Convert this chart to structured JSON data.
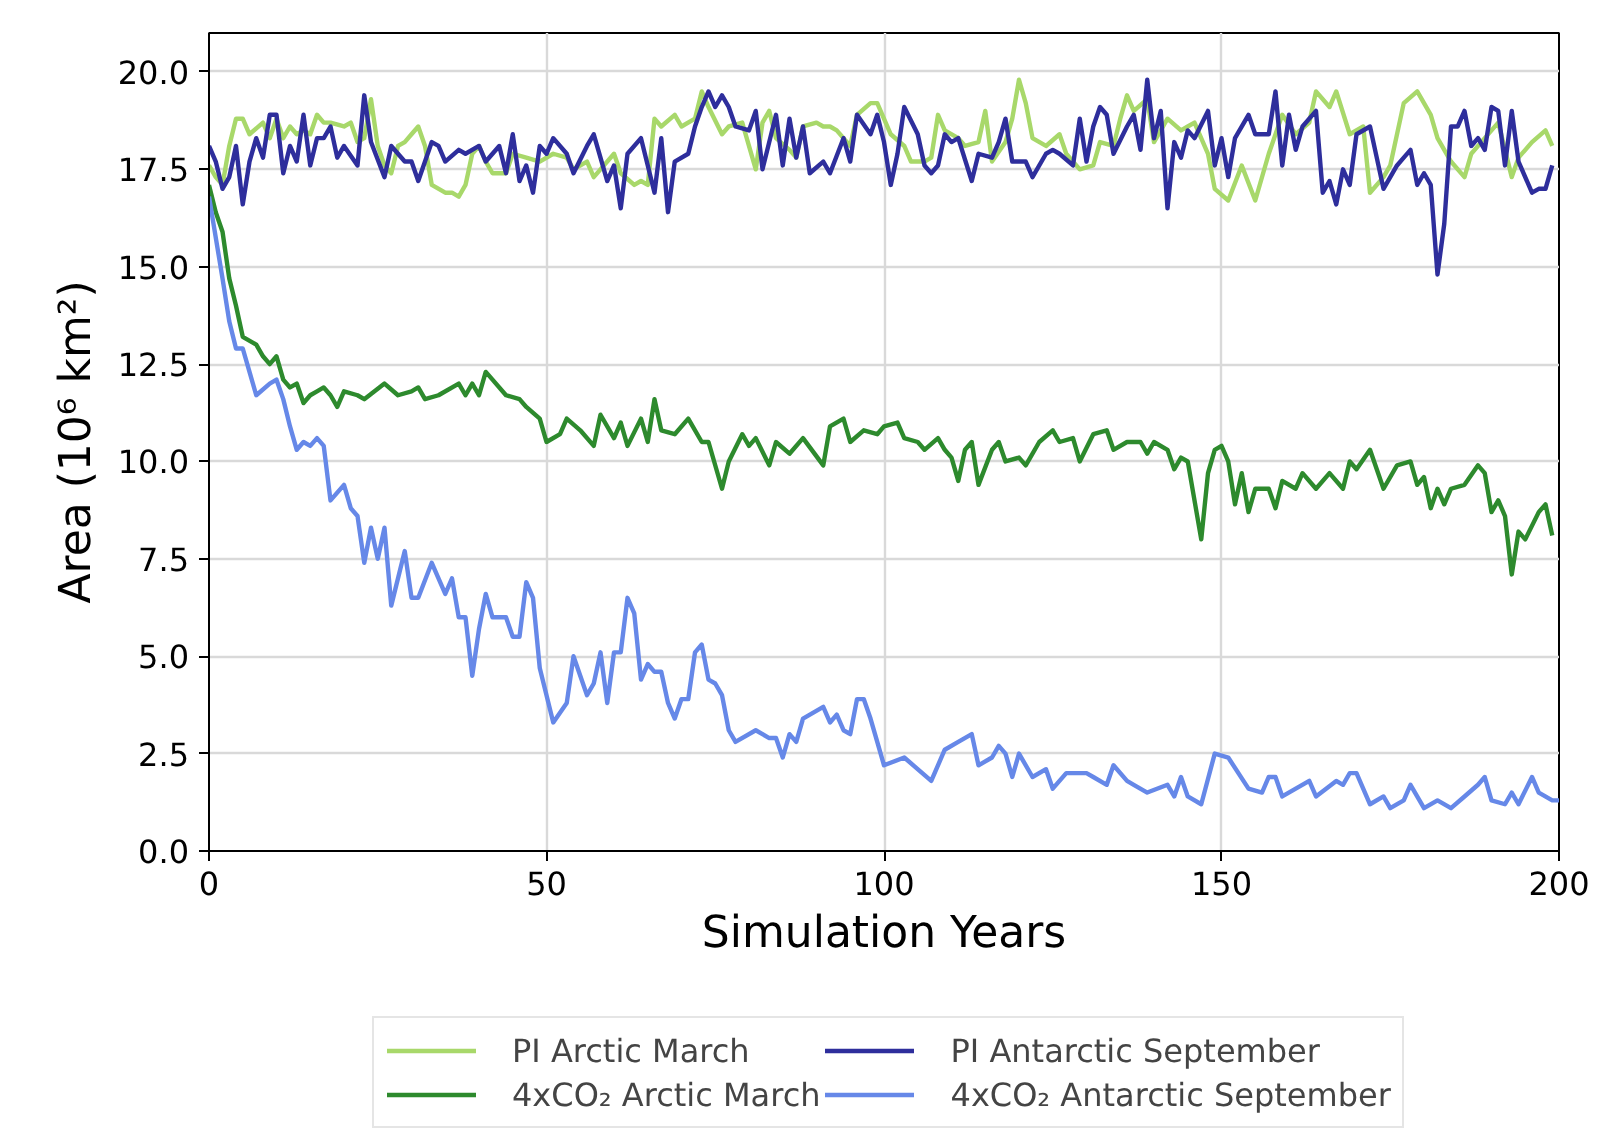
{
  "chart_data": {
    "type": "line",
    "xlabel": "Simulation Years",
    "ylabel": "Area (10⁶ km²)",
    "xlim": [
      0,
      200
    ],
    "xticks": [
      0,
      50,
      100,
      150,
      200
    ],
    "ylim": [
      0,
      21
    ],
    "yticks": [
      {
        "value": 0,
        "label": "0.0"
      },
      {
        "value": 2.5,
        "label": "2.5"
      },
      {
        "value": 5,
        "label": "5.0"
      },
      {
        "value": 7.5,
        "label": "7.5"
      },
      {
        "value": 10,
        "label": "10.0"
      },
      {
        "value": 12.5,
        "label": "12.5"
      },
      {
        "value": 15,
        "label": "15.0"
      },
      {
        "value": 17.5,
        "label": "17.5"
      },
      {
        "value": 20,
        "label": "20.0"
      }
    ],
    "grid": true,
    "legend": "bottom",
    "line_style": "solid",
    "series": [
      {
        "name": "PI Arctic March",
        "color": "#a8d86a",
        "x": [
          0,
          1,
          2,
          3,
          4,
          5,
          6,
          8,
          9,
          10,
          11,
          12,
          13,
          14,
          15,
          16,
          17,
          18,
          20,
          21,
          22,
          23,
          24,
          25,
          26,
          27,
          28,
          29,
          30,
          31,
          32,
          33,
          35,
          36,
          37,
          38,
          39,
          40,
          41,
          42,
          44,
          45,
          47,
          49,
          51,
          53,
          54,
          56,
          57,
          58,
          60,
          61,
          63,
          64,
          65,
          66,
          67,
          69,
          70,
          72,
          73,
          74,
          76,
          77,
          79,
          81,
          82,
          83,
          84,
          86,
          87,
          88,
          90,
          91,
          92,
          93,
          95,
          96,
          98,
          99,
          101,
          103,
          104,
          106,
          107,
          108,
          109,
          111,
          112,
          114,
          115,
          116,
          118,
          119,
          120,
          121,
          122,
          124,
          126,
          127,
          129,
          131,
          132,
          134,
          135,
          136,
          137,
          139,
          140,
          142,
          144,
          145,
          146,
          148,
          149,
          151,
          153,
          155,
          157,
          159,
          161,
          163,
          164,
          166,
          167,
          169,
          171,
          172,
          174,
          175,
          177,
          179,
          181,
          182,
          184,
          186,
          187,
          189,
          191,
          193,
          194,
          196,
          198,
          199
        ],
        "values": [
          17.6,
          17.3,
          17.1,
          18.1,
          18.8,
          18.8,
          18.4,
          18.7,
          18.3,
          18.8,
          18.3,
          18.6,
          18.4,
          18.5,
          18.4,
          18.9,
          18.7,
          18.7,
          18.6,
          18.7,
          18.2,
          18.3,
          19.3,
          18.1,
          17.6,
          17.4,
          18.1,
          18.2,
          18.4,
          18.6,
          18.1,
          17.1,
          16.9,
          16.9,
          16.8,
          17.1,
          17.9,
          18.1,
          17.7,
          17.4,
          17.4,
          17.9,
          17.8,
          17.7,
          17.9,
          17.8,
          17.5,
          17.7,
          17.3,
          17.5,
          17.9,
          17.4,
          17.1,
          17.2,
          17.1,
          18.8,
          18.6,
          18.9,
          18.6,
          18.8,
          19.5,
          19.1,
          18.4,
          18.6,
          18.7,
          17.5,
          18.7,
          19.0,
          18.3,
          18.0,
          17.8,
          18.6,
          18.7,
          18.6,
          18.6,
          18.5,
          18.1,
          18.9,
          19.2,
          19.2,
          18.4,
          18.1,
          17.7,
          17.7,
          17.8,
          18.9,
          18.5,
          18.3,
          18.1,
          18.2,
          19.0,
          17.7,
          18.2,
          18.8,
          19.8,
          19.2,
          18.3,
          18.1,
          18.4,
          17.9,
          17.5,
          17.6,
          18.2,
          18.1,
          18.8,
          19.4,
          19.0,
          19.3,
          18.2,
          18.8,
          18.5,
          18.6,
          18.7,
          17.9,
          17.0,
          16.7,
          17.6,
          16.7,
          17.9,
          18.9,
          18.4,
          18.7,
          19.5,
          19.1,
          19.5,
          18.4,
          18.6,
          16.9,
          17.3,
          17.6,
          19.2,
          19.5,
          18.9,
          18.3,
          17.7,
          17.3,
          17.9,
          18.3,
          18.7,
          17.3,
          17.8,
          18.2,
          18.5,
          18.1
        ]
      },
      {
        "name": "4xCO₂ Arctic March",
        "color": "#2d8a2d",
        "x": [
          0,
          1,
          2,
          3,
          4,
          5,
          7,
          8,
          9,
          10,
          11,
          12,
          13,
          14,
          15,
          16,
          17,
          18,
          19,
          20,
          22,
          23,
          26,
          28,
          30,
          31,
          32,
          34,
          37,
          38,
          39,
          40,
          41,
          42,
          44,
          46,
          47,
          49,
          50,
          52,
          53,
          55,
          57,
          58,
          60,
          61,
          62,
          64,
          65,
          66,
          67,
          69,
          71,
          73,
          74,
          76,
          77,
          79,
          80,
          81,
          83,
          84,
          86,
          88,
          91,
          92,
          94,
          95,
          97,
          99,
          100,
          102,
          103,
          105,
          106,
          108,
          109,
          110,
          111,
          112,
          113,
          114,
          116,
          117,
          118,
          120,
          121,
          123,
          125,
          126,
          128,
          129,
          131,
          133,
          134,
          136,
          138,
          139,
          140,
          142,
          143,
          144,
          145,
          147,
          148,
          149,
          150,
          151,
          152,
          153,
          154,
          155,
          157,
          158,
          159,
          161,
          162,
          164,
          166,
          168,
          169,
          170,
          172,
          174,
          176,
          178,
          179,
          180,
          181,
          182,
          183,
          184,
          186,
          188,
          189,
          190,
          191,
          192,
          193,
          194,
          195,
          197,
          198,
          199
        ],
        "values": [
          17.1,
          16.4,
          15.9,
          14.7,
          14.0,
          13.2,
          13.0,
          12.7,
          12.5,
          12.7,
          12.1,
          11.9,
          12.0,
          11.5,
          11.7,
          11.8,
          11.9,
          11.7,
          11.4,
          11.8,
          11.7,
          11.6,
          12.0,
          11.7,
          11.8,
          11.9,
          11.6,
          11.7,
          12.0,
          11.7,
          12.0,
          11.7,
          12.3,
          12.1,
          11.7,
          11.6,
          11.4,
          11.1,
          10.5,
          10.7,
          11.1,
          10.8,
          10.4,
          11.2,
          10.6,
          11.0,
          10.4,
          11.1,
          10.5,
          11.6,
          10.8,
          10.7,
          11.1,
          10.5,
          10.5,
          9.3,
          10.0,
          10.7,
          10.4,
          10.6,
          9.9,
          10.5,
          10.2,
          10.6,
          9.9,
          10.9,
          11.1,
          10.5,
          10.8,
          10.7,
          10.9,
          11.0,
          10.6,
          10.5,
          10.3,
          10.6,
          10.3,
          10.1,
          9.5,
          10.3,
          10.5,
          9.4,
          10.3,
          10.5,
          10.0,
          10.1,
          9.9,
          10.5,
          10.8,
          10.5,
          10.6,
          10.0,
          10.7,
          10.8,
          10.3,
          10.5,
          10.5,
          10.2,
          10.5,
          10.3,
          9.8,
          10.1,
          10.0,
          8.0,
          9.7,
          10.3,
          10.4,
          10.0,
          8.9,
          9.7,
          8.7,
          9.3,
          9.3,
          8.8,
          9.5,
          9.3,
          9.7,
          9.3,
          9.7,
          9.3,
          10.0,
          9.8,
          10.3,
          9.3,
          9.9,
          10.0,
          9.4,
          9.6,
          8.8,
          9.3,
          8.9,
          9.3,
          9.4,
          9.9,
          9.7,
          8.7,
          9.0,
          8.6,
          7.1,
          8.2,
          8.0,
          8.7,
          8.9,
          8.1
        ]
      },
      {
        "name": "PI Antarctic September",
        "color": "#2e2e9c",
        "x": [
          0,
          1,
          2,
          3,
          4,
          5,
          6,
          7,
          8,
          9,
          10,
          11,
          12,
          13,
          14,
          15,
          16,
          17,
          18,
          19,
          20,
          22,
          23,
          24,
          26,
          27,
          29,
          30,
          31,
          33,
          34,
          35,
          37,
          38,
          40,
          41,
          43,
          44,
          45,
          46,
          47,
          48,
          49,
          50,
          51,
          53,
          54,
          56,
          57,
          59,
          60,
          61,
          62,
          64,
          65,
          66,
          67,
          68,
          69,
          71,
          72,
          73,
          74,
          75,
          76,
          77,
          78,
          80,
          81,
          82,
          84,
          85,
          86,
          87,
          88,
          89,
          91,
          92,
          94,
          95,
          96,
          98,
          99,
          100,
          101,
          102,
          103,
          105,
          106,
          107,
          108,
          109,
          110,
          111,
          113,
          114,
          116,
          117,
          118,
          119,
          121,
          122,
          124,
          125,
          126,
          128,
          129,
          130,
          131,
          132,
          133,
          134,
          136,
          137,
          138,
          139,
          140,
          141,
          142,
          143,
          144,
          145,
          146,
          148,
          149,
          150,
          151,
          152,
          154,
          155,
          157,
          158,
          159,
          160,
          161,
          162,
          164,
          165,
          166,
          167,
          168,
          169,
          170,
          172,
          173,
          174,
          176,
          177,
          178,
          179,
          180,
          181,
          182,
          183,
          184,
          185,
          186,
          187,
          188,
          189,
          190,
          191,
          192,
          193,
          194,
          196,
          197,
          198,
          199
        ],
        "values": [
          18.1,
          17.7,
          17.0,
          17.3,
          18.1,
          16.6,
          17.7,
          18.3,
          17.8,
          18.9,
          18.9,
          17.4,
          18.1,
          17.7,
          18.9,
          17.6,
          18.3,
          18.3,
          18.6,
          17.8,
          18.1,
          17.6,
          19.4,
          18.2,
          17.3,
          18.1,
          17.7,
          17.7,
          17.2,
          18.2,
          18.1,
          17.7,
          18.0,
          17.9,
          18.1,
          17.7,
          18.1,
          17.4,
          18.4,
          17.2,
          17.6,
          16.9,
          18.1,
          17.9,
          18.3,
          17.9,
          17.4,
          18.1,
          18.4,
          17.2,
          17.6,
          16.5,
          17.9,
          18.3,
          17.6,
          16.9,
          18.3,
          16.4,
          17.7,
          17.9,
          18.6,
          19.1,
          19.5,
          19.1,
          19.4,
          19.1,
          18.6,
          18.5,
          19.0,
          17.5,
          18.9,
          17.6,
          18.8,
          17.8,
          18.6,
          17.4,
          17.7,
          17.4,
          18.3,
          17.7,
          18.9,
          18.4,
          18.9,
          18.2,
          17.1,
          17.9,
          19.1,
          18.4,
          17.6,
          17.4,
          17.6,
          18.4,
          18.2,
          18.3,
          17.2,
          17.9,
          17.8,
          18.2,
          18.8,
          17.7,
          17.7,
          17.3,
          17.9,
          18.0,
          17.9,
          17.6,
          18.8,
          17.7,
          18.6,
          19.1,
          18.9,
          17.9,
          18.6,
          18.9,
          18.0,
          19.8,
          18.3,
          19.0,
          16.5,
          18.2,
          17.8,
          18.5,
          18.3,
          19.0,
          17.6,
          18.3,
          17.3,
          18.3,
          18.9,
          18.4,
          18.4,
          19.5,
          17.6,
          18.9,
          18.0,
          18.6,
          19.0,
          16.9,
          17.2,
          16.6,
          17.5,
          17.1,
          18.4,
          18.6,
          17.8,
          17.0,
          17.6,
          17.8,
          18.0,
          17.1,
          17.4,
          17.1,
          14.8,
          16.1,
          18.6,
          18.6,
          19.0,
          18.1,
          18.3,
          18.0,
          19.1,
          19.0,
          17.6,
          19.0,
          17.7,
          16.9,
          17.0,
          17.0,
          17.6
        ]
      },
      {
        "name": "4xCO₂ Antarctic September",
        "color": "#6688e8",
        "x": [
          0,
          2,
          3,
          4,
          5,
          6,
          7,
          9,
          10,
          11,
          12,
          13,
          14,
          15,
          16,
          17,
          18,
          20,
          21,
          22,
          23,
          24,
          25,
          26,
          27,
          29,
          30,
          31,
          33,
          35,
          36,
          37,
          38,
          39,
          40,
          41,
          42,
          44,
          45,
          46,
          47,
          48,
          49,
          51,
          53,
          54,
          56,
          57,
          58,
          59,
          60,
          61,
          62,
          63,
          64,
          65,
          66,
          67,
          68,
          69,
          70,
          71,
          72,
          73,
          74,
          75,
          76,
          77,
          78,
          81,
          83,
          84,
          85,
          86,
          87,
          88,
          91,
          92,
          93,
          94,
          95,
          96,
          97,
          98,
          99,
          100,
          103,
          107,
          109,
          111,
          113,
          114,
          116,
          117,
          118,
          119,
          120,
          122,
          124,
          125,
          127,
          130,
          131,
          133,
          134,
          136,
          137,
          139,
          142,
          143,
          144,
          145,
          147,
          149,
          151,
          154,
          156,
          157,
          158,
          159,
          161,
          163,
          164,
          167,
          168,
          169,
          170,
          172,
          174,
          175,
          177,
          178,
          180,
          182,
          184,
          186,
          188,
          189,
          190,
          192,
          193,
          194,
          196,
          197,
          199,
          200
        ],
        "values": [
          16.8,
          14.7,
          13.6,
          12.9,
          12.9,
          12.3,
          11.7,
          12.0,
          12.1,
          11.6,
          10.9,
          10.3,
          10.5,
          10.4,
          10.6,
          10.4,
          9.0,
          9.4,
          8.8,
          8.6,
          7.4,
          8.3,
          7.5,
          8.3,
          6.3,
          7.7,
          6.5,
          6.5,
          7.4,
          6.6,
          7.0,
          6.0,
          6.0,
          4.5,
          5.7,
          6.6,
          6.0,
          6.0,
          5.5,
          5.5,
          6.9,
          6.5,
          4.7,
          3.3,
          3.8,
          5.0,
          4.0,
          4.3,
          5.1,
          3.8,
          5.1,
          5.1,
          6.5,
          6.1,
          4.4,
          4.8,
          4.6,
          4.6,
          3.8,
          3.4,
          3.9,
          3.9,
          5.1,
          5.3,
          4.4,
          4.3,
          4.0,
          3.1,
          2.8,
          3.1,
          2.9,
          2.9,
          2.4,
          3.0,
          2.8,
          3.4,
          3.7,
          3.3,
          3.5,
          3.1,
          3.0,
          3.9,
          3.9,
          3.4,
          2.8,
          2.2,
          2.4,
          1.8,
          2.6,
          2.8,
          3.0,
          2.2,
          2.4,
          2.7,
          2.5,
          1.9,
          2.5,
          1.9,
          2.1,
          1.6,
          2.0,
          2.0,
          1.9,
          1.7,
          2.2,
          1.8,
          1.7,
          1.5,
          1.7,
          1.4,
          1.9,
          1.4,
          1.2,
          2.5,
          2.4,
          1.6,
          1.5,
          1.9,
          1.9,
          1.4,
          1.6,
          1.8,
          1.4,
          1.8,
          1.7,
          2.0,
          2.0,
          1.2,
          1.4,
          1.1,
          1.3,
          1.7,
          1.1,
          1.3,
          1.1,
          1.4,
          1.7,
          1.9,
          1.3,
          1.2,
          1.5,
          1.2,
          1.9,
          1.5,
          1.3,
          1.3
        ]
      }
    ]
  }
}
